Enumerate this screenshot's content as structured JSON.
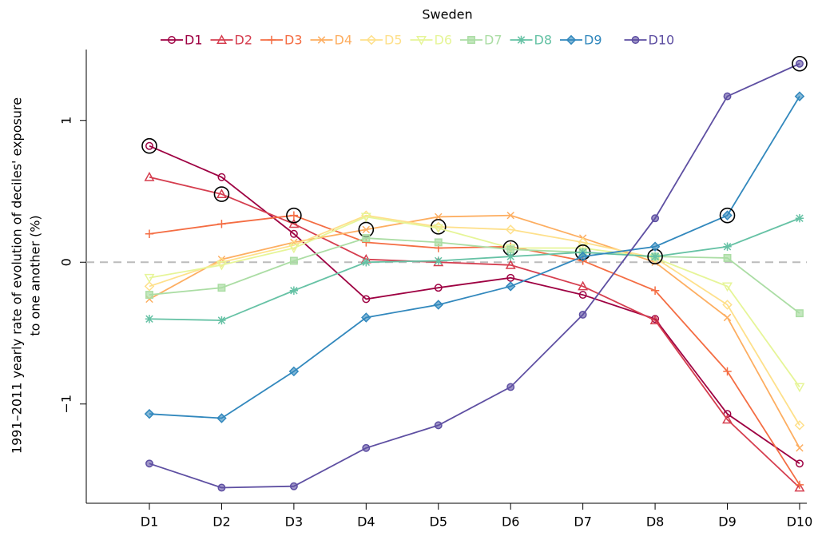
{
  "chart_data": {
    "type": "line",
    "title": "Sweden",
    "ylabel": [
      "1991–2011 yearly rate of evolution of deciles' exposure",
      "to one another (%)"
    ],
    "categories": [
      "D1",
      "D2",
      "D3",
      "D4",
      "D5",
      "D6",
      "D7",
      "D8",
      "D9",
      "D10"
    ],
    "ylim": [
      -1.7,
      1.5
    ],
    "yticks": [
      {
        "value": -1,
        "label": "−1"
      },
      0,
      1
    ],
    "reference_line": 0,
    "legend": "top",
    "series": [
      {
        "name": "D1",
        "color": "#9e0142",
        "marker": "circle",
        "values": [
          0.82,
          0.6,
          0.2,
          -0.26,
          -0.18,
          -0.11,
          -0.23,
          -0.4,
          -1.07,
          -1.42
        ]
      },
      {
        "name": "D2",
        "color": "#d53e4f",
        "marker": "triangle",
        "values": [
          0.6,
          0.48,
          0.27,
          0.02,
          0.0,
          -0.02,
          -0.17,
          -0.41,
          -1.11,
          -1.59
        ]
      },
      {
        "name": "D3",
        "color": "#f46d43",
        "marker": "plus",
        "values": [
          0.2,
          0.27,
          0.33,
          0.14,
          0.1,
          0.11,
          0.01,
          -0.2,
          -0.77,
          -1.57
        ]
      },
      {
        "name": "D4",
        "color": "#fdae61",
        "marker": "cross",
        "values": [
          -0.26,
          0.02,
          0.14,
          0.23,
          0.32,
          0.33,
          0.17,
          0.0,
          -0.39,
          -1.31
        ]
      },
      {
        "name": "D5",
        "color": "#fee08b",
        "marker": "diamond",
        "values": [
          -0.17,
          0.0,
          0.12,
          0.33,
          0.25,
          0.23,
          0.14,
          0.03,
          -0.3,
          -1.15
        ]
      },
      {
        "name": "D6",
        "color": "#e6f598",
        "marker": "down-triangle",
        "values": [
          -0.11,
          -0.02,
          0.1,
          0.32,
          0.24,
          0.1,
          0.1,
          0.03,
          -0.17,
          -0.88
        ]
      },
      {
        "name": "D7",
        "color": "#abdda4",
        "marker": "square",
        "values": [
          -0.23,
          -0.18,
          0.01,
          0.17,
          0.14,
          0.09,
          0.07,
          0.04,
          0.03,
          -0.36
        ]
      },
      {
        "name": "D8",
        "color": "#66c2a5",
        "marker": "asterisk",
        "values": [
          -0.4,
          -0.41,
          -0.2,
          0.0,
          0.01,
          0.04,
          0.07,
          0.04,
          0.11,
          0.31
        ]
      },
      {
        "name": "D9",
        "color": "#3288bd",
        "marker": "filled-diamond",
        "values": [
          -1.07,
          -1.1,
          -0.77,
          -0.39,
          -0.3,
          -0.17,
          0.04,
          0.11,
          0.33,
          1.17
        ]
      },
      {
        "name": "D10",
        "color": "#5e4fa2",
        "marker": "filled-circle",
        "values": [
          -1.42,
          -1.59,
          -1.58,
          -1.31,
          -1.15,
          -0.88,
          -0.37,
          0.31,
          1.17,
          1.4
        ]
      }
    ]
  }
}
